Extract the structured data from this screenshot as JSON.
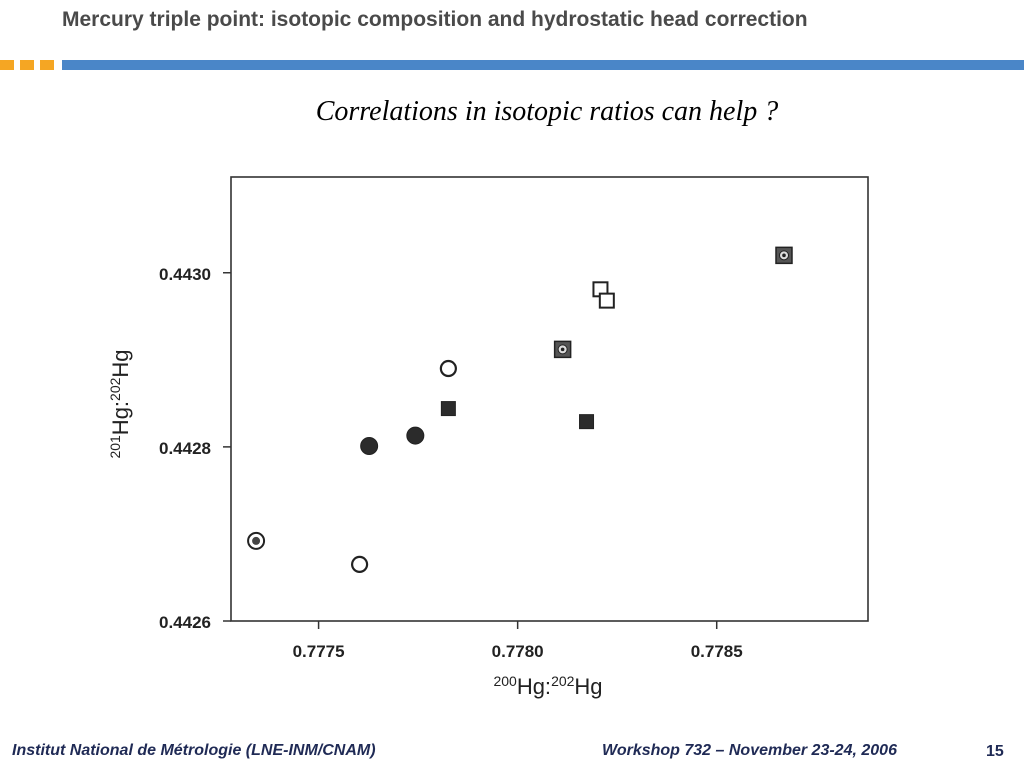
{
  "slide": {
    "title": "Mercury triple point: isotopic composition and hydrostatic head correction",
    "subtitle": "Correlations in isotopic ratios can help ?",
    "accent_orange": "#f5a623",
    "accent_blue": "#4a86c8"
  },
  "footer": {
    "left": "Institut National de Métrologie (LNE-INM/CNAM)",
    "right": "Workshop 732 – November 23-24, 2006",
    "page": "15"
  },
  "chart_data": {
    "type": "scatter",
    "xlabel": {
      "pre_sup": "200",
      "mid": "Hg:",
      "mid_sup": "202",
      "post": "Hg"
    },
    "ylabel": {
      "pre_sup": "201",
      "mid": "Hg:",
      "mid_sup": "202",
      "post": "Hg"
    },
    "xlim": [
      0.77728,
      0.77888
    ],
    "ylim": [
      0.4426,
      0.44311
    ],
    "xticks": [
      {
        "value": 0.7775,
        "label": "0.7775"
      },
      {
        "value": 0.778,
        "label": "0.7780"
      },
      {
        "value": 0.7785,
        "label": "0.7785"
      }
    ],
    "yticks": [
      {
        "value": 0.4426,
        "label": "0.4426"
      },
      {
        "value": 0.4428,
        "label": "0.4428"
      },
      {
        "value": 0.443,
        "label": "0.4430"
      }
    ],
    "grid": false,
    "legend": "none",
    "points": [
      {
        "x": 0.777343,
        "y": 0.442692,
        "marker": "circle-dot"
      },
      {
        "x": 0.777603,
        "y": 0.442665,
        "marker": "circle-open"
      },
      {
        "x": 0.777627,
        "y": 0.442801,
        "marker": "circle-filled"
      },
      {
        "x": 0.777743,
        "y": 0.442813,
        "marker": "circle-filled"
      },
      {
        "x": 0.777826,
        "y": 0.44289,
        "marker": "circle-open"
      },
      {
        "x": 0.777826,
        "y": 0.442844,
        "marker": "square-filled"
      },
      {
        "x": 0.778113,
        "y": 0.442912,
        "marker": "square-dot"
      },
      {
        "x": 0.778173,
        "y": 0.442829,
        "marker": "square-filled"
      },
      {
        "x": 0.778208,
        "y": 0.442981,
        "marker": "square-open"
      },
      {
        "x": 0.778224,
        "y": 0.442968,
        "marker": "square-open"
      },
      {
        "x": 0.778669,
        "y": 0.44302,
        "marker": "square-dot"
      }
    ]
  }
}
